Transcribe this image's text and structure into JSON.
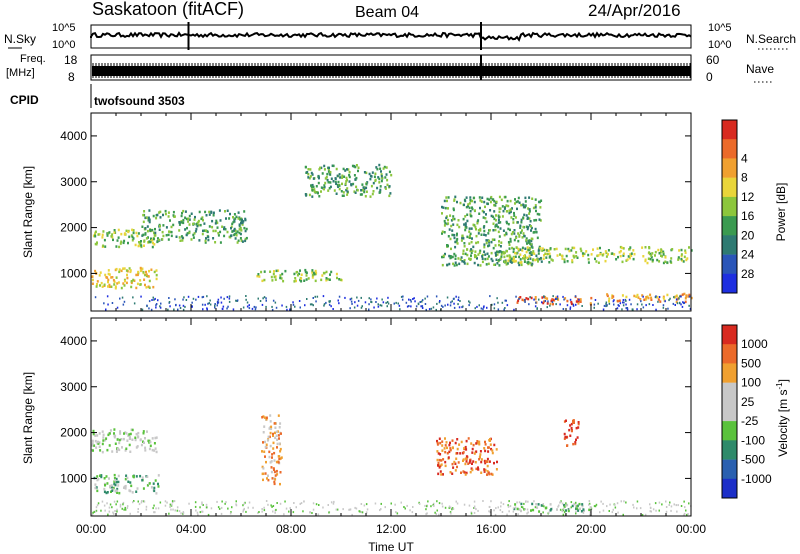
{
  "header": {
    "station": "Saskatoon (fitACF)",
    "beam": "Beam 04",
    "date": "24/Apr/2016"
  },
  "chart_data": [
    {
      "type": "line",
      "panel": "noise",
      "left_label": "N.Sky",
      "right_label": "N.Search",
      "left_ticks": [
        "10^5",
        "10^0"
      ],
      "right_ticks": [
        "10^5",
        "10^0"
      ],
      "x_range": [
        "00:00",
        "24:00"
      ],
      "markers_hours": [
        3.9,
        15.6
      ]
    },
    {
      "type": "line",
      "panel": "frequency",
      "left_label_lines": [
        "Freq.",
        "[MHz]"
      ],
      "right_label": "Nave",
      "left_ticks": [
        "18",
        "8"
      ],
      "right_ticks": [
        "60",
        "0"
      ],
      "markers_hours": [
        15.6
      ]
    },
    {
      "type": "table",
      "panel": "cpid",
      "label": "CPID",
      "program": "twofsound 3503"
    },
    {
      "type": "heatmap",
      "panel": "power",
      "ylabel": "Slant Range [km]",
      "yticks": [
        "1000",
        "2000",
        "3000",
        "4000"
      ],
      "ylim": [
        180,
        4500
      ],
      "colorbar": {
        "label": "Power [dB]",
        "ticks": [
          "4",
          "8",
          "12",
          "16",
          "20",
          "24",
          "28"
        ],
        "colors": [
          "#1e2fe0",
          "#2a55b8",
          "#2e7a72",
          "#3a9a50",
          "#8cc63c",
          "#e9d53a",
          "#f0a030",
          "#eb6a2a",
          "#d82a20"
        ]
      },
      "xticks": [
        "00:00",
        "04:00",
        "08:00",
        "12:00",
        "16:00",
        "20:00",
        "00:00"
      ],
      "bands": [
        {
          "t0": 0.0,
          "t1": 2.6,
          "r0": 1600,
          "r1": 2000,
          "level": 4
        },
        {
          "t0": 0.0,
          "t1": 2.7,
          "r0": 700,
          "r1": 1150,
          "level": 5
        },
        {
          "t0": 2.0,
          "t1": 6.2,
          "r0": 1700,
          "r1": 2400,
          "level": 3
        },
        {
          "t0": 6.5,
          "t1": 10.0,
          "r0": 850,
          "r1": 1100,
          "level": 4
        },
        {
          "t0": 8.5,
          "t1": 12.0,
          "r0": 2700,
          "r1": 3400,
          "level": 3
        },
        {
          "t0": 14.0,
          "t1": 18.0,
          "r0": 1200,
          "r1": 2700,
          "level": 3
        },
        {
          "t0": 16.5,
          "t1": 24.0,
          "r0": 1250,
          "r1": 1600,
          "level": 4
        },
        {
          "t0": 16.8,
          "t1": 20.0,
          "r0": 350,
          "r1": 520,
          "level": 7
        },
        {
          "t0": 20.5,
          "t1": 24.0,
          "r0": 400,
          "r1": 580,
          "level": 6
        }
      ]
    },
    {
      "type": "heatmap",
      "panel": "velocity",
      "ylabel": "Slant Range [km]",
      "yticks": [
        "1000",
        "2000",
        "3000",
        "4000"
      ],
      "ylim": [
        180,
        4500
      ],
      "colorbar": {
        "label_main": "Velocity ",
        "label_unit": "[m s",
        "label_exp": "-1",
        "label_close": "]",
        "ticks": [
          "1000",
          "500",
          "100",
          "25",
          "-25",
          "-100",
          "-500",
          "-1000"
        ],
        "colors": [
          "#1c2fc8",
          "#2a60b0",
          "#2e8a6a",
          "#5ac23c",
          "#c8c8c8",
          "#c8c8c8",
          "#f0a030",
          "#eb6a2a",
          "#d82a20"
        ]
      },
      "xticks": [
        "00:00",
        "04:00",
        "08:00",
        "12:00",
        "16:00",
        "20:00",
        "00:00"
      ],
      "xlabel": "Time UT",
      "bands": [
        {
          "t0": 0.0,
          "t1": 2.6,
          "r0": 1600,
          "r1": 2100,
          "level": 4
        },
        {
          "t0": 0.0,
          "t1": 2.7,
          "r0": 700,
          "r1": 1100,
          "level": 3
        },
        {
          "t0": 6.8,
          "t1": 7.6,
          "r0": 900,
          "r1": 2400,
          "level": 6
        },
        {
          "t0": 13.8,
          "t1": 16.2,
          "r0": 1100,
          "r1": 1900,
          "level": 7
        },
        {
          "t0": 18.9,
          "t1": 19.5,
          "r0": 1700,
          "r1": 2300,
          "level": 8
        },
        {
          "t0": 16.8,
          "t1": 20.0,
          "r0": 300,
          "r1": 480,
          "level": 3
        }
      ]
    }
  ]
}
